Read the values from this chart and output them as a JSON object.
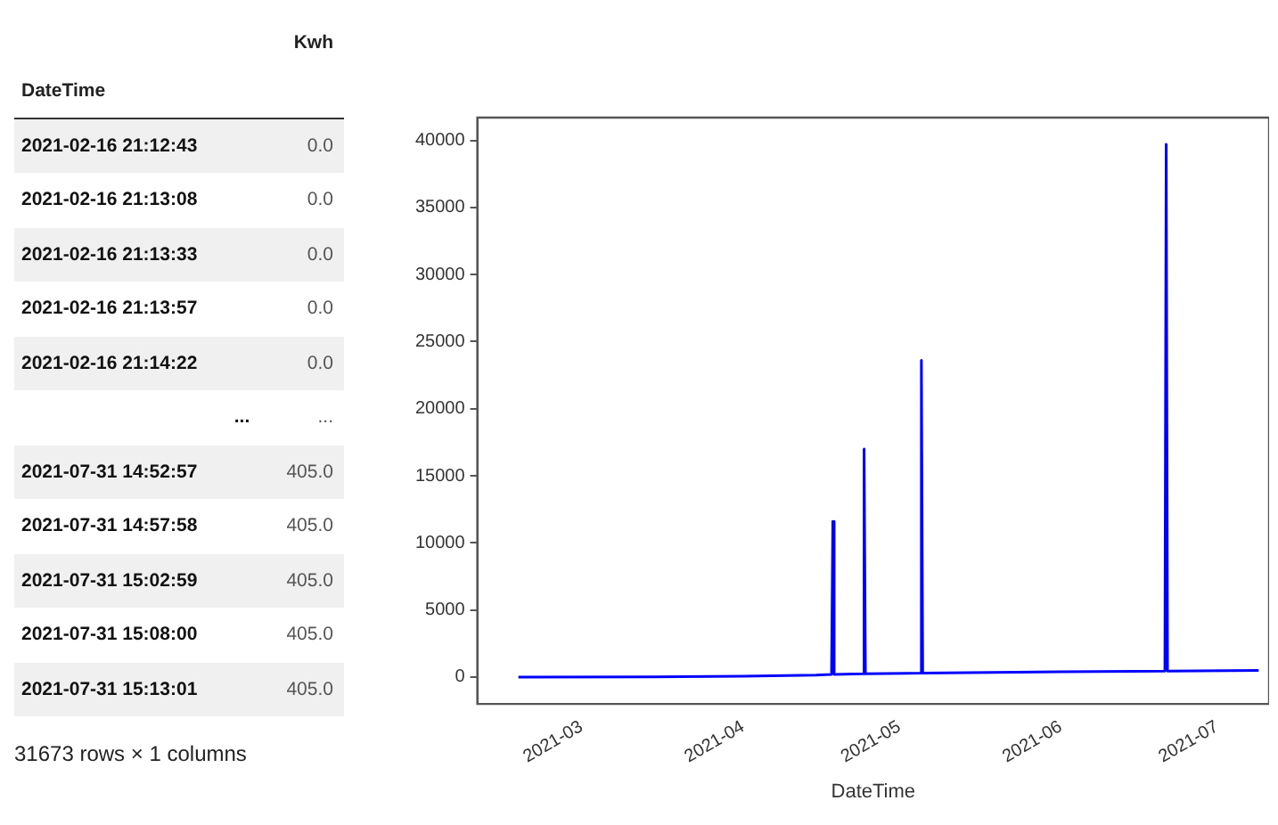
{
  "chart_data": [
    {
      "type": "other",
      "annotations": [
        "Kwh",
        "DateTime",
        "2021-02-16 21:12:43",
        "0.0",
        "2021-02-16 21:13:08",
        "0.0",
        "2021-02-16 21:13:33",
        "0.0",
        "2021-02-16 21:13:57",
        "0.0",
        "2021-02-16 21:14:22",
        "0.0",
        "...",
        "...",
        "2021-07-31 14:52:57",
        "405.0",
        "2021-07-31 14:57:58",
        "405.0",
        "2021-07-31 15:02:59",
        "405.0",
        "2021-07-31 15:08:00",
        "405.0",
        "2021-07-31 15:13:01",
        "405.0",
        "31673 rows × 1 columns"
      ]
    },
    {
      "type": "line",
      "xlabel": "DateTime",
      "color": "#0000ff",
      "grid": false,
      "legend": false,
      "marker": "none",
      "x": [
        "2021-02-16T21:12",
        "2021-03-15",
        "2021-04-01",
        "2021-04-15",
        "2021-04-18T00:00",
        "2021-04-18T06:00",
        "2021-04-18T12:00",
        "2021-04-24T00:00",
        "2021-04-24T06:00",
        "2021-04-24T12:00",
        "2021-05-05T00:00",
        "2021-05-05T06:00",
        "2021-05-05T12:00",
        "2021-06-01",
        "2021-06-21T00:00",
        "2021-06-21T06:00",
        "2021-06-21T12:00",
        "2021-07-09"
      ],
      "values": [
        0,
        20,
        60,
        150,
        200,
        11600,
        200,
        250,
        17000,
        250,
        300,
        23600,
        300,
        400,
        450,
        39700,
        450,
        500
      ],
      "xlim": [
        "2021-02-09",
        "2021-07-11"
      ],
      "xticks": [
        "2021-03",
        "2021-04",
        "2021-05",
        "2021-06",
        "2021-07"
      ],
      "ylim": [
        -2000,
        41700
      ],
      "yticks": [
        0,
        5000,
        10000,
        15000,
        20000,
        25000,
        30000,
        35000,
        40000
      ]
    }
  ]
}
